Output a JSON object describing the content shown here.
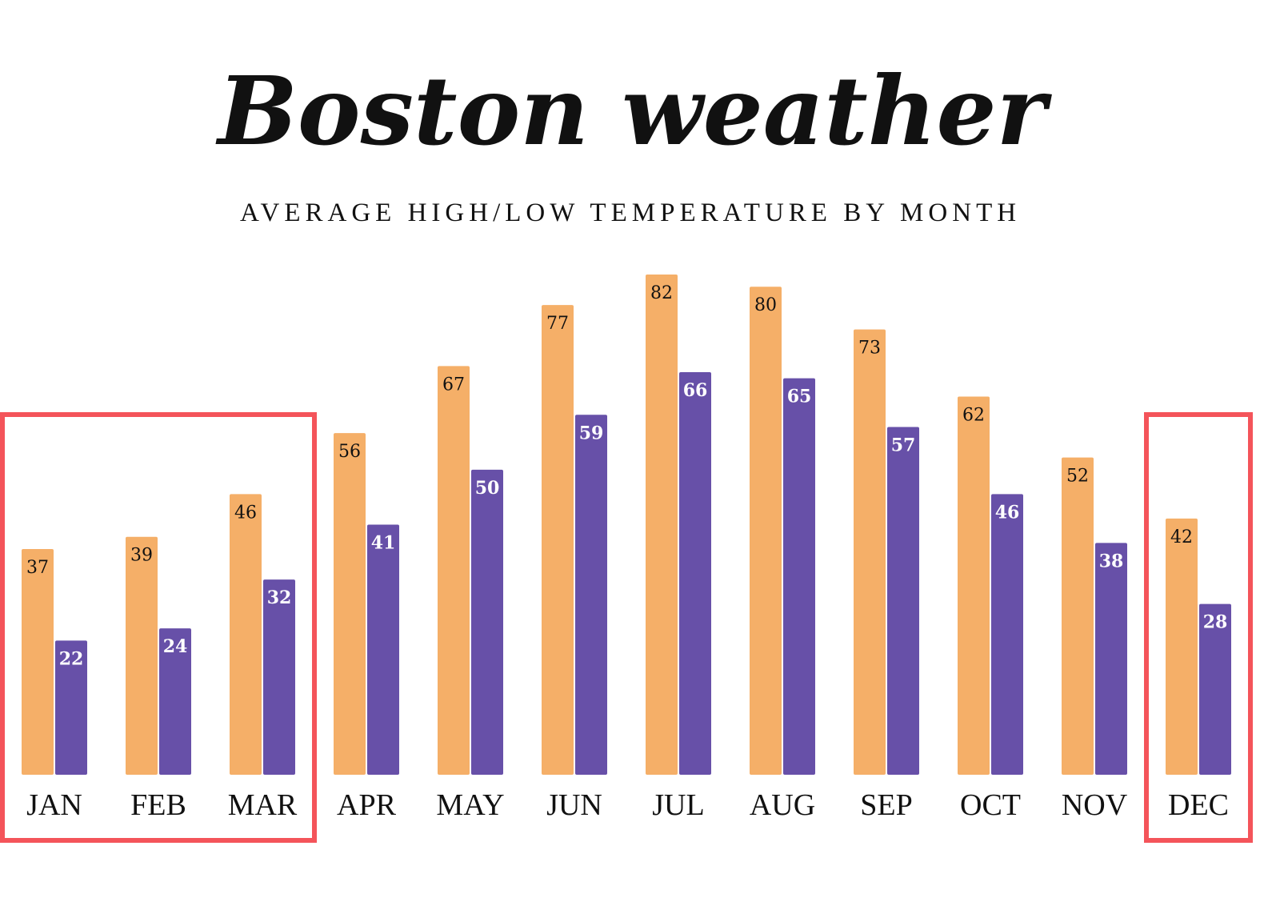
{
  "chart_data": {
    "type": "bar",
    "title": "Boston weather",
    "subtitle": "AVERAGE HIGH/LOW TEMPERATURE BY MONTH",
    "categories": [
      "JAN",
      "FEB",
      "MAR",
      "APR",
      "MAY",
      "JUN",
      "JUL",
      "AUG",
      "SEP",
      "OCT",
      "NOV",
      "DEC"
    ],
    "series": [
      {
        "name": "High",
        "color": "#F5AF68",
        "values": [
          37,
          39,
          46,
          56,
          67,
          77,
          82,
          80,
          73,
          62,
          52,
          42
        ]
      },
      {
        "name": "Low",
        "color": "#6750A8",
        "values": [
          22,
          24,
          32,
          41,
          50,
          59,
          66,
          65,
          57,
          46,
          38,
          28
        ]
      }
    ],
    "ylim": [
      0,
      82
    ],
    "grid": false,
    "highlight_color": "#F4545A",
    "highlighted_groups": [
      [
        "JAN",
        "FEB",
        "MAR"
      ],
      [
        "DEC"
      ]
    ]
  }
}
